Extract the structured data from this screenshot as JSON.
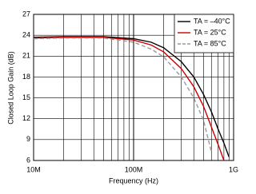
{
  "chart_data": {
    "type": "line",
    "x_label": "Frequency (Hz)",
    "y_label": "Closed Loop Gain (dB)",
    "x": [
      10000000,
      20000000,
      50000000,
      100000000,
      150000000,
      200000000,
      300000000,
      400000000,
      500000000,
      600000000,
      700000000,
      800000000,
      900000000,
      1000000000
    ],
    "series": [
      {
        "name": "TA = –40°C",
        "color": "#000000",
        "dash": false,
        "values": [
          23.7,
          23.8,
          23.8,
          23.5,
          23.0,
          22.2,
          20.2,
          18.0,
          15.5,
          13.0,
          10.5,
          8.5,
          6.5,
          null
        ]
      },
      {
        "name": "TA = 25°C",
        "color": "#cc0000",
        "dash": false,
        "values": [
          23.6,
          23.7,
          23.7,
          23.3,
          22.6,
          21.6,
          19.2,
          16.6,
          13.8,
          10.8,
          8.3,
          6.0,
          null,
          null
        ]
      },
      {
        "name": "TA = 85°C",
        "color": "#999999",
        "dash": true,
        "values": [
          23.5,
          23.6,
          23.6,
          23.0,
          22.0,
          20.9,
          18.0,
          15.0,
          11.8,
          7.2,
          null,
          null,
          null,
          null
        ]
      }
    ],
    "x_log": true,
    "xlim": [
      10000000,
      1000000000
    ],
    "xticks": [
      {
        "value": 10000000,
        "label": "10M"
      },
      {
        "value": 100000000,
        "label": "100M"
      },
      {
        "value": 1000000000,
        "label": "1G"
      }
    ],
    "ylim": [
      6,
      27
    ],
    "yticks": [
      6,
      9,
      12,
      15,
      18,
      21,
      24,
      27
    ],
    "grid": true,
    "legend": "top-right"
  }
}
